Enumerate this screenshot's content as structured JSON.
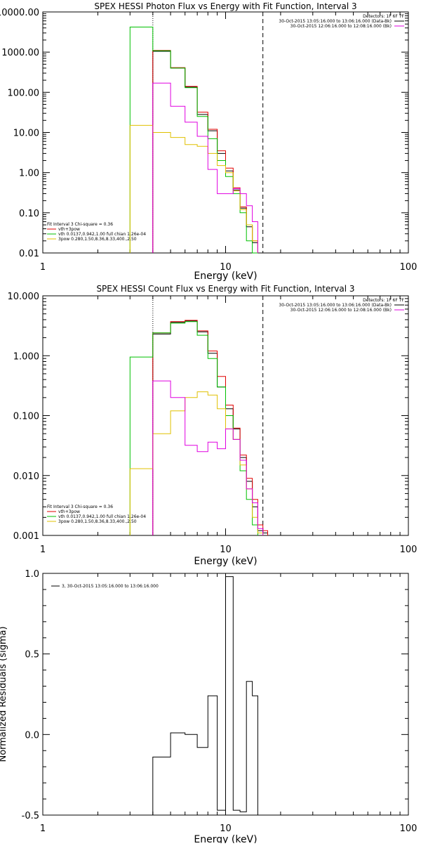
{
  "chart_data": [
    {
      "type": "line",
      "subtype": "step",
      "title": "SPEX HESSI Photon Flux vs Energy with Fit Function, Interval 3",
      "xlabel": "Energy (keV)",
      "ylabel": "",
      "xscale": "log",
      "yscale": "log",
      "xlim": [
        1,
        100
      ],
      "ylim": [
        0.01,
        10000
      ],
      "x_ticks": [
        1,
        10,
        100
      ],
      "x_tick_labels": [
        "1",
        "10",
        "100"
      ],
      "y_ticks": [
        0.01,
        0.1,
        1,
        10,
        100,
        1000,
        10000
      ],
      "y_tick_labels": [
        "0.01",
        "0.10",
        "1.00",
        "10.00",
        "100.00",
        "1000.00",
        "10000.00"
      ],
      "vlines": [
        {
          "x": 4.0,
          "style": "dotted"
        },
        {
          "x": 16.0,
          "style": "dashed"
        }
      ],
      "legend_top_right": [
        {
          "text": "Detectors: 1F 6F 7F",
          "color": null
        },
        {
          "text": "30-Oct-2015 13:05:16.000 to 13:06:16.000 (Data-Bk)",
          "color": "#000000"
        },
        {
          "text": "30-Oct-2015 12:06:16.000 to 12:08:16.000 (Bk)",
          "color": "#e000e0"
        }
      ],
      "legend_bottom_left": [
        {
          "text": "Fit Interval  3    Chi-square = 0.36",
          "color": null
        },
        {
          "text": "vth+3pow",
          "color": "#e00000"
        },
        {
          "text": "vth 0.0137,0.942,1.00  full chian 1.26e-04",
          "color": "#00c000"
        },
        {
          "text": "3pow  0.280,1.50,8.36,8.33,400.,2.50",
          "color": "#e0c000"
        }
      ],
      "bin_edges": [
        3,
        4,
        5,
        6,
        7,
        8,
        9,
        10,
        11,
        12,
        13,
        14,
        15,
        16,
        17,
        18
      ],
      "series": [
        {
          "name": "data",
          "color": "#000000",
          "values": [
            null,
            1050,
            400,
            135,
            28,
            11,
            3.0,
            1.1,
            0.37,
            0.13,
            0.045,
            0.018,
            null,
            null,
            null
          ]
        },
        {
          "name": "vth+3pow",
          "color": "#e00000",
          "values": [
            null,
            1100,
            410,
            140,
            32,
            12,
            3.5,
            1.3,
            0.42,
            0.14,
            0.05,
            0.02,
            null,
            null,
            null
          ]
        },
        {
          "name": "vth",
          "color": "#00c000",
          "values": [
            4200,
            1080,
            400,
            130,
            25,
            7.0,
            2.0,
            0.8,
            0.3,
            0.1,
            0.02,
            0.008,
            null,
            null,
            null
          ]
        },
        {
          "name": "3pow",
          "color": "#e0c000",
          "values": [
            15,
            10,
            7.5,
            5.0,
            4.5,
            3.0,
            1.5,
            1.0,
            0.35,
            0.12,
            0.05,
            0.02,
            null,
            null,
            null
          ]
        },
        {
          "name": "bk",
          "color": "#e000e0",
          "values": [
            null,
            170,
            45,
            18,
            8,
            1.2,
            0.3,
            0.3,
            0.4,
            0.3,
            0.15,
            0.06,
            null,
            null,
            null
          ]
        }
      ]
    },
    {
      "type": "line",
      "subtype": "step",
      "title": "SPEX HESSI Count Flux vs Energy with Fit Function, Interval 3",
      "xlabel": "Energy (keV)",
      "ylabel": "",
      "xscale": "log",
      "yscale": "log",
      "xlim": [
        1,
        100
      ],
      "ylim": [
        0.001,
        10
      ],
      "x_ticks": [
        1,
        10,
        100
      ],
      "x_tick_labels": [
        "1",
        "10",
        "100"
      ],
      "y_ticks": [
        0.001,
        0.01,
        0.1,
        1,
        10
      ],
      "y_tick_labels": [
        "0.001",
        "0.010",
        "0.100",
        "1.000",
        "10.000"
      ],
      "vlines": [
        {
          "x": 4.0,
          "style": "dotted"
        },
        {
          "x": 16.0,
          "style": "dashed"
        }
      ],
      "legend_top_right": [
        {
          "text": "Detectors: 1F 6F 7F",
          "color": null
        },
        {
          "text": "30-Oct-2015 13:05:16.000 to 13:06:16.000 (Data-Bk)",
          "color": "#000000"
        },
        {
          "text": "30-Oct-2015 12:06:16.000 to 12:08:16.000 (Bk)",
          "color": "#e000e0"
        }
      ],
      "legend_bottom_left": [
        {
          "text": "Fit Interval  3    Chi-square = 0.36",
          "color": null
        },
        {
          "text": "vth+3pow",
          "color": "#e00000"
        },
        {
          "text": "vth 0.0137,0.942,1.00  full chian 1.26e-04",
          "color": "#00c000"
        },
        {
          "text": "3pow  0.280,1.50,8.36,8.33,400.,2.50",
          "color": "#e0c000"
        }
      ],
      "bin_edges": [
        3,
        4,
        5,
        6,
        7,
        8,
        9,
        10,
        11,
        12,
        13,
        14,
        15,
        16,
        17,
        18
      ],
      "series": [
        {
          "name": "data",
          "color": "#000000",
          "values": [
            null,
            2.3,
            3.6,
            3.8,
            2.5,
            1.1,
            0.3,
            0.13,
            0.06,
            0.02,
            0.008,
            0.003,
            0.0012,
            0.0011,
            null
          ]
        },
        {
          "name": "vth+3pow",
          "color": "#e00000",
          "values": [
            null,
            2.4,
            3.7,
            3.9,
            2.6,
            1.2,
            0.45,
            0.15,
            0.062,
            0.022,
            0.009,
            0.004,
            0.0015,
            0.0012,
            null
          ]
        },
        {
          "name": "vth",
          "color": "#00c000",
          "values": [
            0.95,
            2.4,
            3.5,
            3.7,
            2.2,
            0.9,
            0.3,
            0.1,
            0.04,
            0.012,
            0.004,
            0.0015,
            null,
            null,
            null
          ]
        },
        {
          "name": "3pow",
          "color": "#e0c000",
          "values": [
            0.013,
            0.05,
            0.12,
            0.2,
            0.25,
            0.22,
            0.13,
            0.06,
            0.04,
            0.015,
            0.006,
            0.002,
            0.0011,
            null,
            null
          ]
        },
        {
          "name": "bk",
          "color": "#e000e0",
          "values": [
            null,
            0.38,
            0.2,
            0.032,
            0.025,
            0.036,
            0.028,
            0.06,
            0.04,
            0.018,
            0.006,
            0.0035,
            0.0013,
            null,
            null
          ]
        }
      ]
    },
    {
      "type": "line",
      "subtype": "step",
      "title": "",
      "xlabel": "Energy (keV)",
      "ylabel": "Normalized Residuals (sigma)",
      "xscale": "log",
      "yscale": "linear",
      "xlim": [
        1,
        100
      ],
      "ylim": [
        -0.5,
        1.0
      ],
      "x_ticks": [
        1,
        10,
        100
      ],
      "x_tick_labels": [
        "1",
        "10",
        "100"
      ],
      "y_ticks": [
        -0.5,
        0.0,
        0.5,
        1.0
      ],
      "y_tick_labels": [
        "-0.5",
        "0.0",
        "0.5",
        "1.0"
      ],
      "legend_top_left": [
        {
          "text": "3, 30-Oct-2015 13:05:16.000 to 13:06:16.000",
          "color": "#000000"
        }
      ],
      "bin_edges": [
        4,
        5,
        6,
        7,
        8,
        9,
        10,
        11,
        12,
        13,
        14,
        15,
        16
      ],
      "series": [
        {
          "name": "residuals",
          "color": "#000000",
          "values": [
            -0.14,
            0.01,
            0.0,
            -0.08,
            0.24,
            -0.47,
            0.98,
            -0.47,
            -0.48,
            0.33,
            0.24,
            null
          ]
        }
      ]
    }
  ]
}
